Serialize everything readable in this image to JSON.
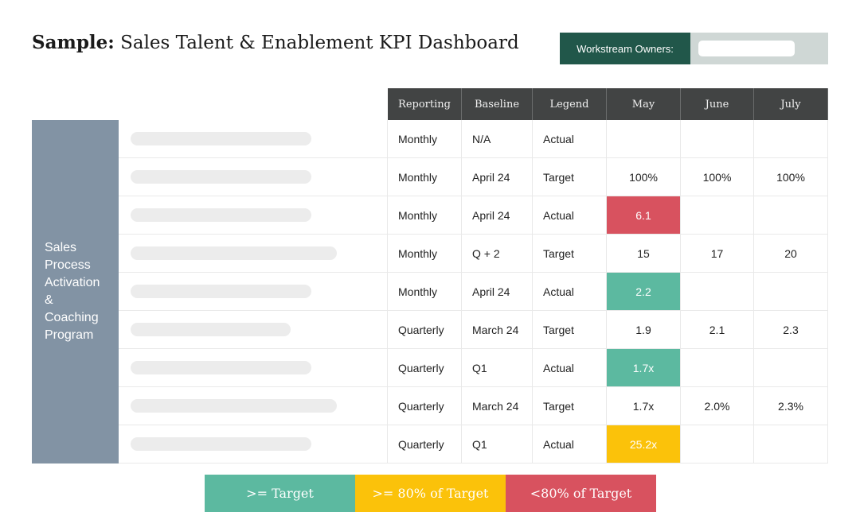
{
  "title": {
    "bold": "Sample:",
    "rest": "Sales Talent & Enablement KPI Dashboard"
  },
  "owners": {
    "label": "Workstream Owners:",
    "value": ""
  },
  "columns": [
    "Reporting",
    "Baseline",
    "Legend",
    "May",
    "June",
    "July"
  ],
  "group_label": "Sales Process Activation & Coaching Program",
  "rows": [
    {
      "reporting": "Monthly",
      "baseline": "N/A",
      "legend": "Actual",
      "may": "",
      "june": "",
      "july": "",
      "may_status": "none"
    },
    {
      "reporting": "Monthly",
      "baseline": "April 24",
      "legend": "Target",
      "may": "100%",
      "june": "100%",
      "july": "100%",
      "may_status": "none"
    },
    {
      "reporting": "Monthly",
      "baseline": "April 24",
      "legend": "Actual",
      "may": "6.1",
      "june": "",
      "july": "",
      "may_status": "below80"
    },
    {
      "reporting": "Monthly",
      "baseline": "Q + 2",
      "legend": "Target",
      "may": "15",
      "june": "17",
      "july": "20",
      "may_status": "none"
    },
    {
      "reporting": "Monthly",
      "baseline": "April 24",
      "legend": "Actual",
      "may": "2.2",
      "june": "",
      "july": "",
      "may_status": "meets"
    },
    {
      "reporting": "Quarterly",
      "baseline": "March 24",
      "legend": "Target",
      "may": "1.9",
      "june": "2.1",
      "july": "2.3",
      "may_status": "none"
    },
    {
      "reporting": "Quarterly",
      "baseline": "Q1",
      "legend": "Actual",
      "may": "1.7x",
      "june": "",
      "july": "",
      "may_status": "meets"
    },
    {
      "reporting": "Quarterly",
      "baseline": "March 24",
      "legend": "Target",
      "may": "1.7x",
      "june": "2.0%",
      "july": "2.3%",
      "may_status": "none"
    },
    {
      "reporting": "Quarterly",
      "baseline": "Q1",
      "legend": "Actual",
      "may": "25.2x",
      "june": "",
      "july": "",
      "may_status": "near80"
    }
  ],
  "key": [
    {
      "label": ">= Target",
      "color": "#5cb9a0"
    },
    {
      "label": ">= 80% of Target",
      "color": "#fbc20a"
    },
    {
      "label": "<80% of Target",
      "color": "#d8525f"
    }
  ],
  "status_colors": {
    "meets": "#5cb9a0",
    "near80": "#fbc20a",
    "below80": "#d8525f"
  }
}
